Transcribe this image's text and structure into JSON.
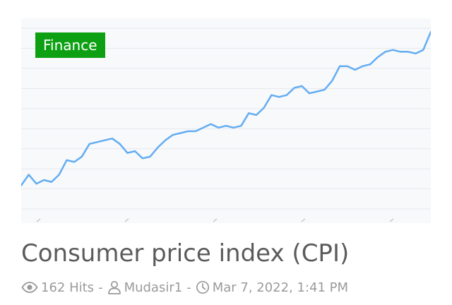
{
  "post": {
    "category": "Finance",
    "title": "Consumer price index (CPI)",
    "hits": "162 Hits",
    "author": "Mudasir1",
    "date": "Mar 7, 2022, 1:41 PM",
    "separator": "-"
  },
  "thumbnail": {
    "line_color": "#63adf2",
    "grid_color": "#e6e8ec",
    "background": "#f8f9fb",
    "badge_color": "#0ea013"
  },
  "chart_data": {
    "type": "line",
    "title": "",
    "xlabel": "",
    "ylabel": "",
    "grid": true,
    "ylim": [
      0,
      100
    ],
    "x": [
      0,
      1,
      2,
      3,
      4,
      5,
      6,
      7,
      8,
      9,
      10,
      11,
      12,
      13,
      14,
      15,
      16,
      17,
      18,
      19,
      20,
      21,
      22,
      23,
      24,
      25,
      26,
      27,
      28,
      29,
      30,
      31,
      32,
      33,
      34,
      35,
      36,
      37,
      38,
      39,
      40,
      41,
      42,
      43,
      44,
      45,
      46,
      47,
      48,
      49,
      50,
      51,
      52,
      53,
      54
    ],
    "series": [
      {
        "values": [
          13,
          19,
          14,
          16,
          15,
          19,
          27,
          26,
          29,
          36,
          37,
          38,
          39,
          36,
          31,
          32,
          28,
          29,
          34,
          38,
          41,
          42,
          43,
          43,
          45,
          47,
          45,
          46,
          45,
          46,
          53,
          52,
          56,
          63,
          62,
          63,
          67,
          68,
          64,
          65,
          66,
          71,
          79,
          79,
          77,
          79,
          80,
          84,
          87,
          88,
          87,
          87,
          86,
          88,
          98
        ]
      }
    ]
  }
}
